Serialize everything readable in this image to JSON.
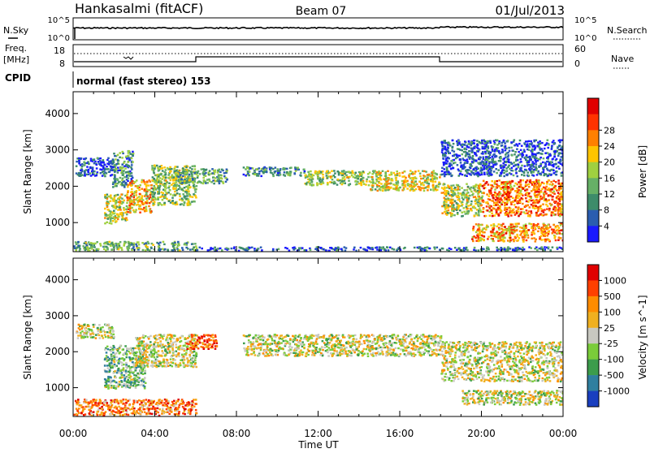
{
  "header": {
    "station": "Hankasalmi (fitACF)",
    "beam": "Beam 07",
    "date": "01/Jul/2013"
  },
  "noise_panel": {
    "left_label": "N.Sky",
    "right_label": "N.Search",
    "left_ticks": [
      "10^5",
      "10^0"
    ],
    "right_ticks": [
      "10^5",
      "10^0"
    ]
  },
  "freq_panel": {
    "left_label_1": "Freq.",
    "left_label_2": "[MHz]",
    "right_label": "Nave",
    "left_ticks": [
      "18",
      "8"
    ],
    "right_ticks": [
      "60",
      "0"
    ]
  },
  "cpid": {
    "label": "CPID",
    "text": "normal (fast stereo) 153"
  },
  "time_axis": {
    "label": "Time UT",
    "ticks": [
      "00:00",
      "04:00",
      "08:00",
      "12:00",
      "16:00",
      "20:00",
      "00:00"
    ]
  },
  "chart_data": [
    {
      "type": "heatmap",
      "quantity": "Power",
      "ylabel": "Slant Range [km]",
      "xlabel": "Time UT",
      "x_range_hours": [
        0,
        24
      ],
      "ylim": [
        200,
        4600
      ],
      "y_ticks": [
        1000,
        2000,
        3000,
        4000
      ],
      "colorbar": {
        "label": "Power [dB]",
        "ticks": [
          "4",
          "8",
          "12",
          "16",
          "20",
          "24",
          "28"
        ],
        "colors": [
          "#1a1aff",
          "#2a5db0",
          "#3d8c6a",
          "#66b066",
          "#a0d040",
          "#ffc400",
          "#ff8000",
          "#ff3300",
          "#e00000"
        ]
      },
      "regions": [
        {
          "t0": 0.1,
          "t1": 1.9,
          "r0": 2300,
          "r1": 2800,
          "level": 0.15
        },
        {
          "t0": 1.9,
          "t1": 2.9,
          "r0": 2000,
          "r1": 3000,
          "level": 0.3
        },
        {
          "t0": 1.5,
          "t1": 2.6,
          "r0": 1000,
          "r1": 1800,
          "level": 0.5
        },
        {
          "t0": 2.6,
          "t1": 3.8,
          "r0": 1300,
          "r1": 2200,
          "level": 0.65
        },
        {
          "t0": 3.8,
          "t1": 6.0,
          "r0": 1500,
          "r1": 2600,
          "level": 0.45
        },
        {
          "t0": 5.0,
          "t1": 7.5,
          "r0": 2100,
          "r1": 2500,
          "level": 0.35
        },
        {
          "t0": 8.3,
          "t1": 11.3,
          "r0": 2300,
          "r1": 2550,
          "level": 0.3
        },
        {
          "t0": 11.3,
          "t1": 14.5,
          "r0": 2050,
          "r1": 2450,
          "level": 0.45
        },
        {
          "t0": 14.5,
          "t1": 18.0,
          "r0": 1900,
          "r1": 2450,
          "level": 0.55
        },
        {
          "t0": 18.0,
          "t1": 20.0,
          "r0": 1200,
          "r1": 2100,
          "level": 0.5
        },
        {
          "t0": 20.0,
          "t1": 24.0,
          "r0": 1200,
          "r1": 2200,
          "level": 0.75
        },
        {
          "t0": 18.0,
          "t1": 24.0,
          "r0": 2300,
          "r1": 3300,
          "level": 0.15
        },
        {
          "t0": 19.5,
          "t1": 24.0,
          "r0": 500,
          "r1": 1000,
          "level": 0.7
        },
        {
          "t0": 0.0,
          "t1": 6.0,
          "r0": 250,
          "r1": 500,
          "level": 0.35
        },
        {
          "t0": 6.0,
          "t1": 24.0,
          "r0": 250,
          "r1": 350,
          "level": 0.2
        }
      ]
    },
    {
      "type": "heatmap",
      "quantity": "Velocity",
      "ylabel": "Slant Range [km]",
      "xlabel": "Time UT",
      "x_range_hours": [
        0,
        24
      ],
      "ylim": [
        200,
        4600
      ],
      "y_ticks": [
        1000,
        2000,
        3000,
        4000
      ],
      "colorbar": {
        "label": "Velocity [m s^-1]",
        "ticks": [
          "1000",
          "500",
          "100",
          "25",
          "-25",
          "-100",
          "-500",
          "-1000"
        ],
        "colors": [
          "#1a3fbf",
          "#2f7f9f",
          "#3c9c4c",
          "#7acc3a",
          "#c8c8c0",
          "#f0b020",
          "#ff8c00",
          "#ff4000",
          "#e00000"
        ]
      },
      "regions": [
        {
          "t0": 0.1,
          "t1": 2.0,
          "r0": 2400,
          "r1": 2800,
          "level": 0.5
        },
        {
          "t0": 1.5,
          "t1": 3.5,
          "r0": 1000,
          "r1": 2200,
          "level": 0.35
        },
        {
          "t0": 3.0,
          "t1": 6.0,
          "r0": 1600,
          "r1": 2500,
          "level": 0.5
        },
        {
          "t0": 5.5,
          "t1": 7.0,
          "r0": 2100,
          "r1": 2500,
          "level": 0.8
        },
        {
          "t0": 8.3,
          "t1": 18.0,
          "r0": 1900,
          "r1": 2500,
          "level": 0.5
        },
        {
          "t0": 18.0,
          "t1": 24.0,
          "r0": 1200,
          "r1": 2300,
          "level": 0.5
        },
        {
          "t0": 19.0,
          "t1": 24.0,
          "r0": 550,
          "r1": 950,
          "level": 0.5
        },
        {
          "t0": 0.0,
          "t1": 6.0,
          "r0": 250,
          "r1": 700,
          "level": 0.72
        }
      ]
    }
  ]
}
